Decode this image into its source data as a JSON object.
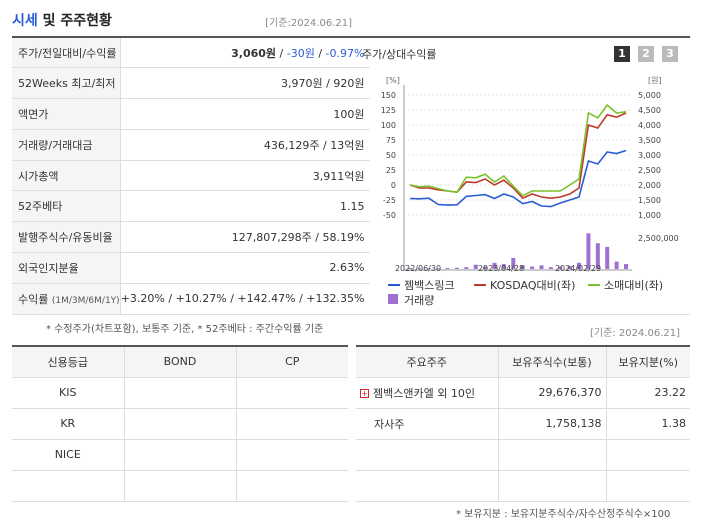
{
  "header": {
    "title_main": "시세",
    "title_rest": " 및 주주현황",
    "date": "[기준:2024.06.21]"
  },
  "info_rows": [
    {
      "label": "주가/전일대비/수익률",
      "price": "3,060원",
      "sep1": " / ",
      "change": "-30원",
      "sep2": " / ",
      "rate": "-0.97%"
    },
    {
      "label": "52Weeks 최고/최저",
      "value": "3,970원 / 920원"
    },
    {
      "label": "액면가",
      "value": "100원"
    },
    {
      "label": "거래량/거래대금",
      "value": "436,129주 / 13억원"
    },
    {
      "label": "시가총액",
      "value": "3,911억원"
    },
    {
      "label": "52주베타",
      "value": "1.15"
    },
    {
      "label": "발행주식수/유동비율",
      "value": "127,807,298주 / 58.19%"
    },
    {
      "label": "외국인지분율",
      "value": "2.63%"
    }
  ],
  "returns": {
    "label": "수익률",
    "periods": "(1M/3M/6M/1Y)",
    "values": "+3.20% / +10.27% / +142.47% / +132.35%"
  },
  "note1": "* 수정주가(차트포함), 보통주 기준, * 52주베타 : 주간수익률 기준",
  "chart_panel": {
    "title": "주가/상대수익률",
    "tabs": [
      "1",
      "2",
      "3"
    ]
  },
  "chart_data": {
    "type": "line",
    "left_axis_unit": "[%]",
    "right_axis_unit": "[원]",
    "left_ticks": [
      "150",
      "125",
      "100",
      "75",
      "50",
      "25",
      "0",
      "-25",
      "-50"
    ],
    "right_ticks": [
      "5,000",
      "4,500",
      "4,000",
      "3,500",
      "3,000",
      "2,500",
      "2,000",
      "1,500",
      "1,000"
    ],
    "volume_tick": "2,500,000",
    "x_ticks": [
      "2022/06/30",
      "2023/04/28",
      "2024/02/29"
    ],
    "legend": [
      "젬백스링크",
      "KOSDAQ대비(좌)",
      "소매대비(좌)",
      "거래량"
    ],
    "colors": {
      "stock": "#2a5bd7",
      "kosdaq": "#c0392b",
      "retail": "#7cc22a",
      "volume": "#a070d0"
    },
    "series": [
      {
        "name": "젬백스링크",
        "axis": "right",
        "values": [
          1550,
          1540,
          1560,
          1350,
          1330,
          1340,
          1620,
          1650,
          1680,
          1550,
          1700,
          1600,
          1380,
          1450,
          1300,
          1280,
          1400,
          1500,
          1600,
          2800,
          2700,
          3100,
          3050,
          3150
        ]
      },
      {
        "name": "KOSDAQ대비(좌)",
        "axis": "left",
        "values": [
          0,
          -5,
          -5,
          -8,
          -10,
          -12,
          5,
          4,
          10,
          0,
          8,
          -5,
          -22,
          -15,
          -20,
          -22,
          -20,
          -15,
          -5,
          100,
          95,
          117,
          113,
          120
        ]
      },
      {
        "name": "소매대비(좌)",
        "axis": "left",
        "values": [
          0,
          -3,
          -2,
          -6,
          -10,
          -12,
          13,
          12,
          18,
          5,
          15,
          -2,
          -18,
          -10,
          -10,
          -10,
          -10,
          0,
          10,
          120,
          112,
          133,
          120,
          122
        ]
      }
    ],
    "volume": [
      80000,
      60000,
      50000,
      60000,
      80000,
      100000,
      150000,
      350000,
      200000,
      500000,
      400000,
      900000,
      300000,
      200000,
      300000,
      150000,
      200000,
      250000,
      500000,
      2900000,
      2100000,
      1800000,
      600000,
      400000
    ],
    "left_range": [
      -50,
      150
    ],
    "right_range": [
      1000,
      5000
    ],
    "volume_range": [
      0,
      3500000
    ]
  },
  "date2": "[기준: 2024.06.21]",
  "grade_table": {
    "headers": [
      "신용등급",
      "BOND",
      "CP"
    ],
    "rows": [
      [
        "KIS",
        "",
        ""
      ],
      [
        "KR",
        "",
        ""
      ],
      [
        "NICE",
        "",
        ""
      ],
      [
        "",
        "",
        ""
      ]
    ]
  },
  "holders_table": {
    "headers": [
      "주요주주",
      "보유주식수(보통)",
      "보유지분(%)"
    ],
    "rows": [
      {
        "name": "젬백스앤카엘 외 10인",
        "shares": "29,676,370",
        "pct": "23.22",
        "expand": true
      },
      {
        "name": "자사주",
        "shares": "1,758,138",
        "pct": "1.38",
        "expand": false
      },
      {
        "name": "",
        "shares": "",
        "pct": "",
        "expand": false
      },
      {
        "name": "",
        "shares": "",
        "pct": "",
        "expand": false
      }
    ]
  },
  "note2": "* 보유지분 : 보유지분주식수/자수산정주식수×100"
}
